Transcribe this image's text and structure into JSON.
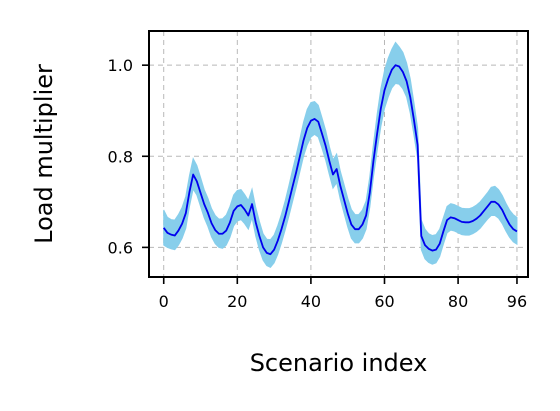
{
  "chart_data": {
    "type": "line",
    "xlabel": "Scenario index",
    "ylabel": "Load multiplier",
    "xlim": [
      -4,
      99
    ],
    "ylim": [
      0.535,
      1.075
    ],
    "grid": true,
    "x_ticks": [
      0,
      20,
      40,
      60,
      80,
      96
    ],
    "x_tick_labels": [
      "0",
      "20",
      "40",
      "60",
      "80",
      "96"
    ],
    "y_ticks": [
      0.6,
      0.8,
      1.0
    ],
    "y_tick_labels": [
      "0.6",
      "0.8",
      "1.0"
    ],
    "colors": {
      "mean_line": "#0000ee",
      "band": "#87ceeb"
    },
    "series": [
      {
        "kind": "mean",
        "x": [
          0,
          1,
          2,
          3,
          4,
          5,
          6,
          7,
          8,
          9,
          10,
          11,
          12,
          13,
          14,
          15,
          16,
          17,
          18,
          19,
          20,
          21,
          22,
          23,
          24,
          25,
          26,
          27,
          28,
          29,
          30,
          31,
          32,
          33,
          34,
          35,
          36,
          37,
          38,
          39,
          40,
          41,
          42,
          43,
          44,
          45,
          46,
          47,
          48,
          49,
          50,
          51,
          52,
          53,
          54,
          55,
          56,
          57,
          58,
          59,
          60,
          61,
          62,
          63,
          64,
          65,
          66,
          67,
          68,
          69,
          70,
          71,
          72,
          73,
          74,
          75,
          76,
          77,
          78,
          79,
          80,
          81,
          82,
          83,
          84,
          85,
          86,
          87,
          88,
          89,
          90,
          91,
          92,
          93,
          94,
          95,
          96
        ],
        "y": [
          0.643,
          0.632,
          0.628,
          0.626,
          0.637,
          0.652,
          0.675,
          0.722,
          0.76,
          0.745,
          0.72,
          0.695,
          0.676,
          0.653,
          0.638,
          0.63,
          0.63,
          0.637,
          0.655,
          0.68,
          0.69,
          0.693,
          0.683,
          0.67,
          0.695,
          0.655,
          0.625,
          0.6,
          0.588,
          0.585,
          0.595,
          0.615,
          0.64,
          0.668,
          0.7,
          0.733,
          0.765,
          0.8,
          0.835,
          0.862,
          0.878,
          0.882,
          0.876,
          0.85,
          0.823,
          0.79,
          0.76,
          0.772,
          0.735,
          0.705,
          0.675,
          0.65,
          0.64,
          0.64,
          0.65,
          0.67,
          0.72,
          0.79,
          0.85,
          0.905,
          0.945,
          0.97,
          0.99,
          1.0,
          0.997,
          0.985,
          0.965,
          0.93,
          0.88,
          0.825,
          0.625,
          0.605,
          0.597,
          0.593,
          0.595,
          0.608,
          0.635,
          0.66,
          0.666,
          0.664,
          0.66,
          0.656,
          0.655,
          0.655,
          0.658,
          0.663,
          0.67,
          0.68,
          0.69,
          0.7,
          0.7,
          0.694,
          0.682,
          0.665,
          0.65,
          0.64,
          0.635
        ]
      },
      {
        "kind": "band",
        "lower": [
          0.605,
          0.6,
          0.597,
          0.595,
          0.605,
          0.62,
          0.642,
          0.69,
          0.728,
          0.715,
          0.69,
          0.665,
          0.646,
          0.623,
          0.608,
          0.6,
          0.598,
          0.605,
          0.622,
          0.647,
          0.658,
          0.661,
          0.652,
          0.64,
          0.665,
          0.625,
          0.595,
          0.572,
          0.56,
          0.556,
          0.566,
          0.585,
          0.61,
          0.638,
          0.668,
          0.7,
          0.732,
          0.766,
          0.8,
          0.825,
          0.842,
          0.848,
          0.842,
          0.818,
          0.792,
          0.76,
          0.73,
          0.742,
          0.705,
          0.675,
          0.645,
          0.62,
          0.61,
          0.61,
          0.62,
          0.64,
          0.688,
          0.755,
          0.812,
          0.865,
          0.905,
          0.93,
          0.95,
          0.96,
          0.958,
          0.948,
          0.93,
          0.895,
          0.847,
          0.795,
          0.595,
          0.575,
          0.567,
          0.563,
          0.566,
          0.58,
          0.607,
          0.632,
          0.638,
          0.636,
          0.632,
          0.628,
          0.627,
          0.627,
          0.63,
          0.635,
          0.642,
          0.652,
          0.662,
          0.67,
          0.67,
          0.664,
          0.652,
          0.636,
          0.622,
          0.612,
          0.607
        ],
        "upper": [
          0.682,
          0.666,
          0.661,
          0.66,
          0.672,
          0.688,
          0.712,
          0.758,
          0.795,
          0.78,
          0.754,
          0.727,
          0.708,
          0.685,
          0.67,
          0.662,
          0.663,
          0.671,
          0.69,
          0.715,
          0.725,
          0.727,
          0.716,
          0.703,
          0.728,
          0.688,
          0.657,
          0.63,
          0.618,
          0.617,
          0.627,
          0.648,
          0.673,
          0.702,
          0.735,
          0.77,
          0.803,
          0.838,
          0.875,
          0.903,
          0.918,
          0.92,
          0.912,
          0.885,
          0.857,
          0.822,
          0.792,
          0.805,
          0.767,
          0.738,
          0.708,
          0.683,
          0.672,
          0.672,
          0.682,
          0.702,
          0.755,
          0.827,
          0.892,
          0.948,
          0.988,
          1.015,
          1.035,
          1.05,
          1.04,
          1.028,
          1.005,
          0.97,
          0.918,
          0.862,
          0.66,
          0.64,
          0.63,
          0.626,
          0.628,
          0.64,
          0.665,
          0.69,
          0.696,
          0.694,
          0.69,
          0.686,
          0.685,
          0.685,
          0.688,
          0.693,
          0.7,
          0.71,
          0.72,
          0.732,
          0.734,
          0.727,
          0.714,
          0.697,
          0.682,
          0.672,
          0.666
        ]
      }
    ]
  }
}
